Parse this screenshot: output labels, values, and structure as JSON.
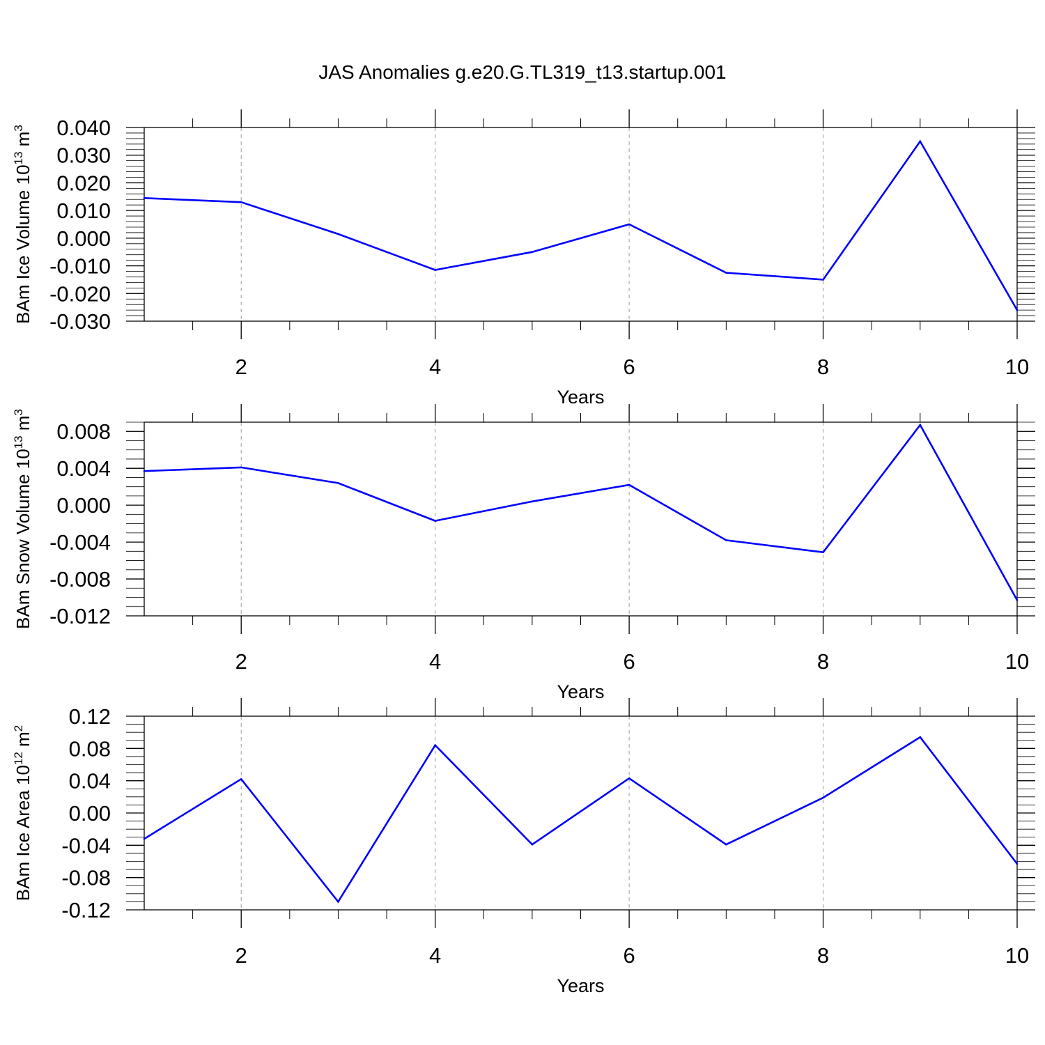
{
  "title": "JAS Anomalies g.e20.G.TL319_t13.startup.001",
  "line_color": "#0000ff",
  "chart_data": [
    {
      "type": "line",
      "xlabel": "Years",
      "ylabel": "BAm Ice Volume 10",
      "ylabel_exp": "13",
      "ylabel_unit": "m",
      "ylabel_unit_exp": "3",
      "x": [
        1,
        2,
        3,
        4,
        5,
        6,
        7,
        8,
        9,
        10
      ],
      "values": [
        0.0145,
        0.013,
        0.0015,
        -0.0115,
        -0.005,
        0.005,
        -0.0125,
        -0.015,
        0.035,
        -0.026
      ],
      "xlim": [
        1,
        10
      ],
      "ylim": [
        -0.03,
        0.04
      ],
      "xticks": [
        2,
        4,
        6,
        8,
        10
      ],
      "xtick_labels": [
        "2",
        "4",
        "6",
        "8",
        "10"
      ],
      "yticks": [
        -0.03,
        -0.02,
        -0.01,
        0.0,
        0.01,
        0.02,
        0.03,
        0.04
      ],
      "ytick_labels": [
        "-0.030",
        "-0.020",
        "-0.010",
        "0.000",
        "0.010",
        "0.020",
        "0.030",
        "0.040"
      ],
      "yminor_step": 0.002,
      "grid": "vertical-dashed"
    },
    {
      "type": "line",
      "xlabel": "Years",
      "ylabel": "BAm Snow Volume 10",
      "ylabel_exp": "13",
      "ylabel_unit": "m",
      "ylabel_unit_exp": "3",
      "x": [
        1,
        2,
        3,
        4,
        5,
        6,
        7,
        8,
        9,
        10
      ],
      "values": [
        0.0037,
        0.0041,
        0.0024,
        -0.0017,
        0.0004,
        0.0022,
        -0.0038,
        -0.0051,
        0.0087,
        -0.0103
      ],
      "xlim": [
        1,
        10
      ],
      "ylim": [
        -0.012,
        0.009
      ],
      "xticks": [
        2,
        4,
        6,
        8,
        10
      ],
      "xtick_labels": [
        "2",
        "4",
        "6",
        "8",
        "10"
      ],
      "yticks": [
        -0.012,
        -0.008,
        -0.004,
        0.0,
        0.004,
        0.008
      ],
      "ytick_labels": [
        "-0.012",
        "-0.008",
        "-0.004",
        "0.000",
        "0.004",
        "0.008"
      ],
      "yminor_step": 0.001,
      "grid": "vertical-dashed"
    },
    {
      "type": "line",
      "xlabel": "Years",
      "ylabel": "BAm Ice Area 10",
      "ylabel_exp": "12",
      "ylabel_unit": "m",
      "ylabel_unit_exp": "2",
      "x": [
        1,
        2,
        3,
        4,
        5,
        6,
        7,
        8,
        9,
        10
      ],
      "values": [
        -0.032,
        0.042,
        -0.11,
        0.084,
        -0.039,
        0.043,
        -0.039,
        0.019,
        0.094,
        -0.063
      ],
      "xlim": [
        1,
        10
      ],
      "ylim": [
        -0.12,
        0.12
      ],
      "xticks": [
        2,
        4,
        6,
        8,
        10
      ],
      "xtick_labels": [
        "2",
        "4",
        "6",
        "8",
        "10"
      ],
      "yticks": [
        -0.12,
        -0.08,
        -0.04,
        0.0,
        0.04,
        0.08,
        0.12
      ],
      "ytick_labels": [
        "-0.12",
        "-0.08",
        "-0.04",
        "0.00",
        "0.04",
        "0.08",
        "0.12"
      ],
      "yminor_step": 0.01,
      "grid": "vertical-dashed"
    }
  ]
}
